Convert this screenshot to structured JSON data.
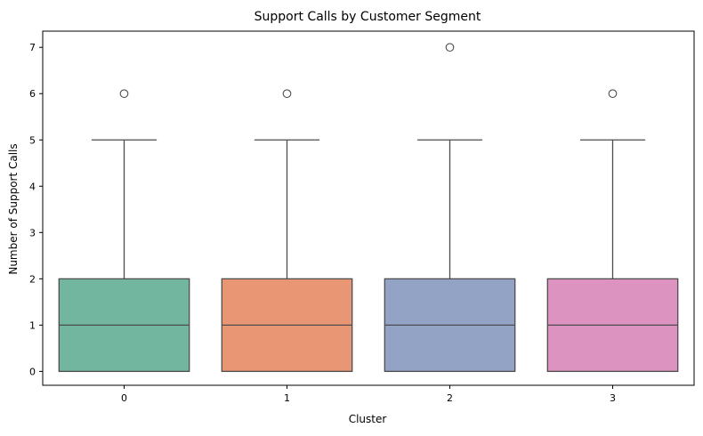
{
  "chart_data": {
    "type": "box",
    "title": "Support Calls by Customer Segment",
    "xlabel": "Cluster",
    "ylabel": "Number of Support Calls",
    "categories": [
      "0",
      "1",
      "2",
      "3"
    ],
    "ylim": [
      -0.3,
      7.35
    ],
    "yticks": [
      "0",
      "1",
      "2",
      "3",
      "4",
      "5",
      "6",
      "7"
    ],
    "grid": false,
    "legend": "none",
    "boxes": [
      {
        "category": "0",
        "whisker_low": 0,
        "q1": 0,
        "median": 1,
        "q3": 2,
        "whisker_high": 5,
        "outliers": [
          6
        ],
        "color": "#72b69f"
      },
      {
        "category": "1",
        "whisker_low": 0,
        "q1": 0,
        "median": 1,
        "q3": 2,
        "whisker_high": 5,
        "outliers": [
          6
        ],
        "color": "#e99674"
      },
      {
        "category": "2",
        "whisker_low": 0,
        "q1": 0,
        "median": 1,
        "q3": 2,
        "whisker_high": 5,
        "outliers": [
          7
        ],
        "color": "#93a3c6"
      },
      {
        "category": "3",
        "whisker_low": 0,
        "q1": 0,
        "median": 1,
        "q3": 2,
        "whisker_high": 5,
        "outliers": [
          6
        ],
        "color": "#dc93c0"
      }
    ],
    "line_color": "#4d4d4d"
  }
}
